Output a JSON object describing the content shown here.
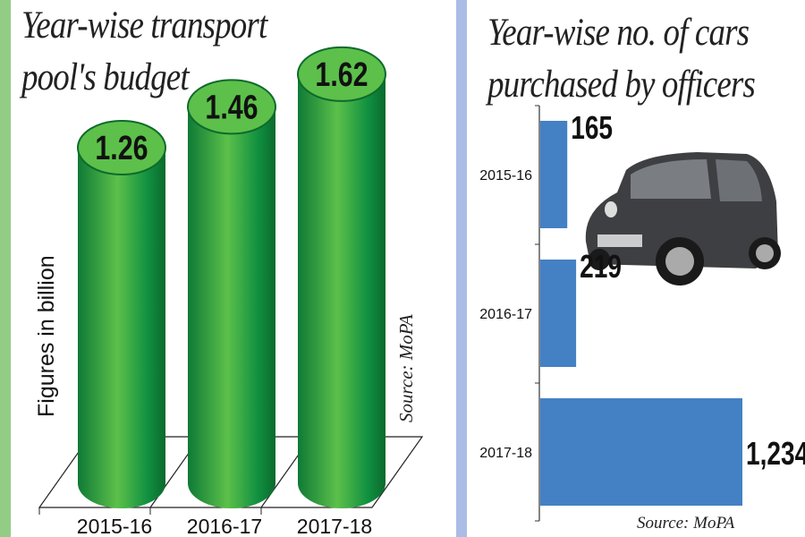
{
  "colors": {
    "left_strip": "#93cc85",
    "right_strip": "#a9bde6",
    "cylinder": "#2fa844",
    "cylinder_top": "#5cc04a",
    "bar": "#4480c4"
  },
  "chart_data": [
    {
      "type": "bar",
      "style": "3d-cylinder",
      "title_lines": [
        "Year-wise transport",
        "pool's budget"
      ],
      "ylabel": "Figures in billion",
      "source": "Source: MoPA",
      "categories": [
        "2015-16",
        "2016-17",
        "2017-18"
      ],
      "values": [
        1.26,
        1.46,
        1.62
      ],
      "data_labels": [
        "1.26",
        "1.46",
        "1.62"
      ],
      "grid": false
    },
    {
      "type": "bar",
      "orientation": "horizontal",
      "title_lines": [
        "Year-wise no. of cars",
        "purchased by officers"
      ],
      "source": "Source: MoPA",
      "categories": [
        "2015-16",
        "2016-17",
        "2017-18"
      ],
      "values": [
        165,
        219,
        1234
      ],
      "data_labels": [
        "165",
        "219",
        "1,234"
      ],
      "grid": false,
      "image": "car-photo"
    }
  ]
}
